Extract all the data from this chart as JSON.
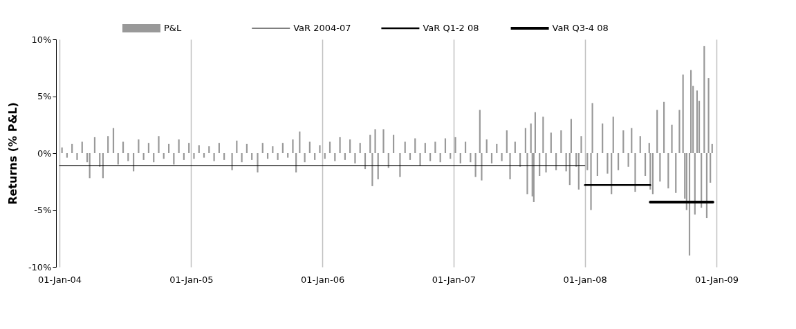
{
  "chart_data": {
    "type": "bar",
    "ylabel": "Returns (% P&L)",
    "xlim": [
      "2004-01-01",
      "2009-01-01"
    ],
    "xticks": [
      {
        "value": "2004-01-01",
        "label": "01-Jan-04"
      },
      {
        "value": "2005-01-01",
        "label": "01-Jan-05"
      },
      {
        "value": "2006-01-01",
        "label": "01-Jan-06"
      },
      {
        "value": "2007-01-01",
        "label": "01-Jan-07"
      },
      {
        "value": "2008-01-01",
        "label": "01-Jan-08"
      },
      {
        "value": "2009-01-01",
        "label": "01-Jan-09"
      }
    ],
    "ylim": [
      -10,
      10
    ],
    "yticks": [
      {
        "value": -10,
        "label": "-10%"
      },
      {
        "value": -5,
        "label": "-5%"
      },
      {
        "value": 0,
        "label": "0%"
      },
      {
        "value": 5,
        "label": "5%"
      },
      {
        "value": 10,
        "label": "10%"
      }
    ],
    "grid": "x",
    "legend": "top",
    "series": [
      {
        "name": "P&L",
        "color": "#999999",
        "x": [
          "2004-01-08",
          "2004-01-22",
          "2004-02-05",
          "2004-02-19",
          "2004-03-04",
          "2004-03-18",
          "2004-03-25",
          "2004-04-08",
          "2004-04-22",
          "2004-05-01",
          "2004-05-15",
          "2004-05-30",
          "2004-06-12",
          "2004-06-26",
          "2004-07-10",
          "2004-07-25",
          "2004-08-08",
          "2004-08-22",
          "2004-09-05",
          "2004-09-19",
          "2004-10-03",
          "2004-10-17",
          "2004-10-31",
          "2004-11-14",
          "2004-11-28",
          "2004-12-12",
          "2004-12-26",
          "2005-01-09",
          "2005-01-23",
          "2005-02-06",
          "2005-02-20",
          "2005-03-06",
          "2005-03-20",
          "2005-04-03",
          "2005-04-25",
          "2005-05-08",
          "2005-05-22",
          "2005-06-05",
          "2005-06-19",
          "2005-07-05",
          "2005-07-19",
          "2005-08-02",
          "2005-08-16",
          "2005-08-30",
          "2005-09-13",
          "2005-09-27",
          "2005-10-11",
          "2005-10-20",
          "2005-10-30",
          "2005-11-13",
          "2005-11-27",
          "2005-12-11",
          "2005-12-25",
          "2006-01-08",
          "2006-01-22",
          "2006-02-05",
          "2006-02-19",
          "2006-03-05",
          "2006-03-19",
          "2006-04-02",
          "2006-04-16",
          "2006-04-30",
          "2006-05-14",
          "2006-05-20",
          "2006-05-28",
          "2006-06-05",
          "2006-06-20",
          "2006-07-04",
          "2006-07-18",
          "2006-08-05",
          "2006-08-19",
          "2006-09-02",
          "2006-09-16",
          "2006-09-30",
          "2006-10-14",
          "2006-10-28",
          "2006-11-11",
          "2006-11-25",
          "2006-12-09",
          "2006-12-23",
          "2007-01-06",
          "2007-01-20",
          "2007-02-03",
          "2007-02-17",
          "2007-03-03",
          "2007-03-15",
          "2007-03-20",
          "2007-04-03",
          "2007-04-17",
          "2007-05-01",
          "2007-05-15",
          "2007-05-29",
          "2007-06-07",
          "2007-06-21",
          "2007-07-05",
          "2007-07-20",
          "2007-07-25",
          "2007-08-04",
          "2007-08-08",
          "2007-08-12",
          "2007-08-16",
          "2007-08-28",
          "2007-09-07",
          "2007-09-15",
          "2007-09-29",
          "2007-10-13",
          "2007-10-27",
          "2007-11-10",
          "2007-11-20",
          "2007-11-24",
          "2007-12-08",
          "2007-12-15",
          "2007-12-22",
          "2008-01-08",
          "2008-01-18",
          "2008-01-22",
          "2008-02-05",
          "2008-02-19",
          "2008-03-04",
          "2008-03-15",
          "2008-03-20",
          "2008-04-03",
          "2008-04-17",
          "2008-05-01",
          "2008-05-10",
          "2008-05-20",
          "2008-06-03",
          "2008-06-17",
          "2008-06-28",
          "2008-07-01",
          "2008-07-08",
          "2008-07-20",
          "2008-07-28",
          "2008-08-08",
          "2008-08-20",
          "2008-08-30",
          "2008-09-10",
          "2008-09-20",
          "2008-09-30",
          "2008-10-05",
          "2008-10-10",
          "2008-10-18",
          "2008-10-22",
          "2008-10-28",
          "2008-11-02",
          "2008-11-08",
          "2008-11-14",
          "2008-11-20",
          "2008-11-28",
          "2008-12-05",
          "2008-12-10",
          "2008-12-15",
          "2008-12-20"
        ],
        "values": [
          0.5,
          -0.4,
          0.8,
          -0.6,
          1.0,
          -0.8,
          -2.2,
          1.4,
          -1.2,
          -2.2,
          1.5,
          2.2,
          -1.0,
          1.0,
          -0.7,
          -1.6,
          1.2,
          -0.6,
          0.9,
          -0.8,
          1.5,
          -0.5,
          0.8,
          -1.0,
          1.2,
          -0.6,
          0.9,
          -0.5,
          0.7,
          -0.4,
          0.6,
          -0.7,
          0.9,
          -0.6,
          -1.5,
          1.1,
          -0.8,
          0.8,
          -0.6,
          -1.7,
          0.9,
          -0.5,
          0.6,
          -0.6,
          0.9,
          -0.4,
          1.2,
          -1.7,
          1.9,
          -0.8,
          1.0,
          -0.6,
          0.7,
          -0.5,
          1.0,
          -0.7,
          1.4,
          -0.6,
          1.2,
          -0.9,
          0.9,
          -1.4,
          1.6,
          -2.9,
          2.1,
          -2.3,
          2.1,
          -1.3,
          1.6,
          -2.1,
          1.0,
          -0.6,
          1.3,
          -1.1,
          0.9,
          -0.7,
          1.0,
          -0.8,
          1.3,
          -0.5,
          1.4,
          -0.9,
          1.0,
          -0.8,
          -2.1,
          3.8,
          -2.4,
          1.2,
          -0.9,
          0.8,
          -0.7,
          2.0,
          -2.3,
          1.0,
          -1.2,
          2.2,
          -3.6,
          2.6,
          -3.8,
          -4.3,
          3.6,
          -2.0,
          3.2,
          -1.7,
          1.8,
          -1.5,
          2.0,
          -1.6,
          -2.8,
          3.0,
          -1.2,
          -3.2,
          1.5,
          -1.5,
          -5.0,
          4.4,
          -2.0,
          2.6,
          -1.8,
          -3.6,
          3.2,
          -1.5,
          2.0,
          -1.2,
          2.2,
          -3.4,
          1.5,
          -2.0,
          0.9,
          -3.2,
          -3.6,
          3.8,
          -2.5,
          4.5,
          -3.1,
          2.5,
          -3.5,
          3.8,
          6.9,
          -4.0,
          -5.0,
          -9.0,
          7.3,
          5.9,
          -5.4,
          5.5,
          4.6,
          -4.8,
          9.4,
          -5.7,
          6.6,
          -2.6,
          0.8
        ]
      },
      {
        "name": "VaR 2004-07",
        "type": "line",
        "color": "#000000",
        "x": [
          "2004-01-01",
          "2008-01-01"
        ],
        "values": [
          -1.1,
          -1.1
        ]
      },
      {
        "name": "VaR Q1-2 08",
        "type": "line",
        "color": "#000000",
        "x": [
          "2008-01-01",
          "2008-07-01"
        ],
        "values": [
          -2.8,
          -2.8
        ]
      },
      {
        "name": "VaR Q3-4 08",
        "type": "line",
        "color": "#000000",
        "x": [
          "2008-07-01",
          "2008-12-22"
        ],
        "values": [
          -4.3,
          -4.3
        ]
      }
    ]
  }
}
